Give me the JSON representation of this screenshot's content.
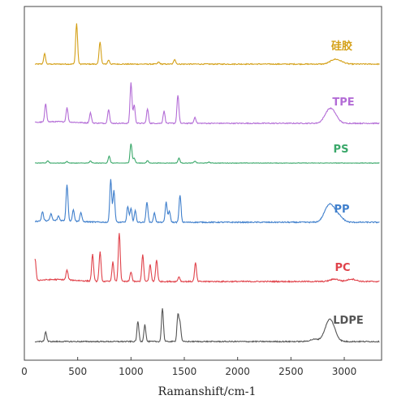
{
  "chart_data": {
    "type": "line",
    "xlabel": "Ramanshift/cm-1",
    "ylabel": "",
    "xlim": [
      0,
      3350
    ],
    "xticks": [
      0,
      500,
      1000,
      1500,
      2000,
      2500,
      3000
    ],
    "xtick_labels": [
      "0",
      "500",
      "1000",
      "1500",
      "2000",
      "2500",
      "3000"
    ],
    "grid": false,
    "y_axis_values": "none (stacked, offset spectra; intensities are relative)",
    "series": [
      {
        "name": "硅胶",
        "color": "#d4a017",
        "baseline": 0.0,
        "peaks": [
          [
            190,
            0.25
          ],
          [
            490,
            1.0
          ],
          [
            710,
            0.55
          ],
          [
            790,
            0.1
          ],
          [
            1260,
            0.05
          ],
          [
            1410,
            0.12
          ],
          [
            2905,
            0.1
          ],
          [
            2965,
            0.05
          ]
        ]
      },
      {
        "name": "TPE",
        "color": "#b36cd6",
        "baseline": 0.0,
        "peaks": [
          [
            200,
            0.45
          ],
          [
            400,
            0.35
          ],
          [
            620,
            0.25
          ],
          [
            790,
            0.35
          ],
          [
            1000,
            1.0
          ],
          [
            1030,
            0.45
          ],
          [
            1155,
            0.35
          ],
          [
            1310,
            0.3
          ],
          [
            1440,
            0.7
          ],
          [
            1600,
            0.15
          ],
          [
            2850,
            0.25
          ],
          [
            2900,
            0.2
          ]
        ]
      },
      {
        "name": "PS",
        "color": "#3aa86a",
        "baseline": 0.0,
        "peaks": [
          [
            220,
            0.12
          ],
          [
            400,
            0.08
          ],
          [
            620,
            0.1
          ],
          [
            795,
            0.35
          ],
          [
            1000,
            1.0
          ],
          [
            1030,
            0.25
          ],
          [
            1155,
            0.12
          ],
          [
            1450,
            0.25
          ],
          [
            1600,
            0.1
          ],
          [
            1730,
            0.05
          ]
        ]
      },
      {
        "name": "PP",
        "color": "#3f7fcc",
        "baseline": 0.0,
        "peaks": [
          [
            170,
            0.2
          ],
          [
            250,
            0.15
          ],
          [
            320,
            0.1
          ],
          [
            400,
            0.8
          ],
          [
            460,
            0.25
          ],
          [
            530,
            0.2
          ],
          [
            810,
            0.95
          ],
          [
            840,
            0.7
          ],
          [
            970,
            0.35
          ],
          [
            1000,
            0.3
          ],
          [
            1040,
            0.25
          ],
          [
            1150,
            0.45
          ],
          [
            1220,
            0.2
          ],
          [
            1330,
            0.45
          ],
          [
            1360,
            0.25
          ],
          [
            1460,
            0.6
          ],
          [
            2840,
            0.2
          ],
          [
            2880,
            0.25
          ],
          [
            2950,
            0.12
          ]
        ]
      },
      {
        "name": "PC",
        "color": "#e0424a",
        "baseline": 0.0,
        "peaks": [
          [
            100,
            0.45
          ],
          [
            400,
            0.2
          ],
          [
            640,
            0.55
          ],
          [
            710,
            0.6
          ],
          [
            830,
            0.4
          ],
          [
            890,
            1.0
          ],
          [
            1000,
            0.2
          ],
          [
            1110,
            0.55
          ],
          [
            1180,
            0.35
          ],
          [
            1240,
            0.45
          ],
          [
            1450,
            0.1
          ],
          [
            1605,
            0.38
          ],
          [
            2910,
            0.05
          ],
          [
            3070,
            0.05
          ]
        ]
      },
      {
        "name": "LDPE",
        "color": "#555555",
        "baseline": 0.0,
        "peaks": [
          [
            200,
            0.22
          ],
          [
            1065,
            0.45
          ],
          [
            1130,
            0.38
          ],
          [
            1295,
            0.75
          ],
          [
            1440,
            0.6
          ],
          [
            1460,
            0.4
          ],
          [
            2720,
            0.05
          ],
          [
            2850,
            0.3
          ],
          [
            2885,
            0.25
          ]
        ]
      }
    ]
  }
}
